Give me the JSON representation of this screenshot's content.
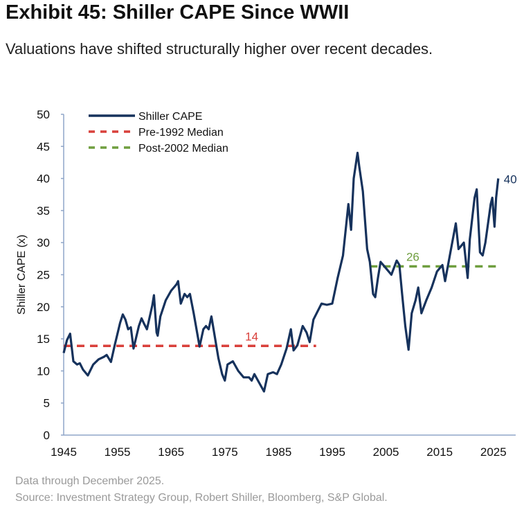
{
  "header": {
    "title": "Exhibit 45: Shiller CAPE Since WWII",
    "subtitle": "Valuations have shifted structurally higher over recent decades."
  },
  "footer": {
    "note": "Data through December 2025.",
    "source": "Source: Investment Strategy Group, Robert Shiller, Bloomberg, S&P Global."
  },
  "chart_data": {
    "type": "line",
    "title": "Exhibit 45: Shiller CAPE Since WWII",
    "xlabel": "",
    "ylabel": "Shiller CAPE (x)",
    "xlim": [
      1945,
      2029
    ],
    "ylim": [
      0,
      50
    ],
    "xticks": [
      1945,
      1955,
      1965,
      1975,
      1985,
      1995,
      2005,
      2015,
      2025
    ],
    "yticks": [
      0,
      5,
      10,
      15,
      20,
      25,
      30,
      35,
      40,
      45,
      50
    ],
    "legend": {
      "placement": "top-left",
      "entries": [
        "Shiller CAPE",
        "Pre-1992 Median",
        "Post-2002 Median"
      ]
    },
    "colors": {
      "cape": "#16325c",
      "pre": "#d9403b",
      "post": "#6f9e3f",
      "axis": "#8fa5c8"
    },
    "series": [
      {
        "name": "Shiller CAPE",
        "points": [
          [
            1945,
            12.8
          ],
          [
            1945.6,
            14.8
          ],
          [
            1946.2,
            15.8
          ],
          [
            1946.8,
            11.5
          ],
          [
            1947.5,
            11
          ],
          [
            1948,
            11.2
          ],
          [
            1948.6,
            10.2
          ],
          [
            1949.5,
            9.3
          ],
          [
            1950.5,
            11
          ],
          [
            1951.5,
            11.8
          ],
          [
            1952.5,
            12.2
          ],
          [
            1953,
            12.5
          ],
          [
            1953.8,
            11.4
          ],
          [
            1954.5,
            14
          ],
          [
            1955.5,
            17.5
          ],
          [
            1956,
            18.8
          ],
          [
            1956.5,
            18
          ],
          [
            1957,
            16.5
          ],
          [
            1957.5,
            16.8
          ],
          [
            1958,
            13.5
          ],
          [
            1959,
            17
          ],
          [
            1959.5,
            18.2
          ],
          [
            1960,
            17.3
          ],
          [
            1960.5,
            16.5
          ],
          [
            1961.5,
            20.2
          ],
          [
            1961.8,
            21.8
          ],
          [
            1962.3,
            16
          ],
          [
            1962.5,
            15.5
          ],
          [
            1963,
            18.5
          ],
          [
            1964,
            21
          ],
          [
            1965,
            22.5
          ],
          [
            1966,
            23.5
          ],
          [
            1966.3,
            24
          ],
          [
            1966.8,
            20.5
          ],
          [
            1967.5,
            22
          ],
          [
            1968,
            21.5
          ],
          [
            1968.5,
            22
          ],
          [
            1969.2,
            19
          ],
          [
            1970.3,
            13.8
          ],
          [
            1971,
            16.5
          ],
          [
            1971.5,
            17
          ],
          [
            1972,
            16.5
          ],
          [
            1972.5,
            18.5
          ],
          [
            1973,
            16
          ],
          [
            1973.8,
            12
          ],
          [
            1974.5,
            9.5
          ],
          [
            1975,
            8.5
          ],
          [
            1975.5,
            11
          ],
          [
            1976.5,
            11.5
          ],
          [
            1977.5,
            10
          ],
          [
            1978.5,
            9
          ],
          [
            1979.5,
            9
          ],
          [
            1980,
            8.5
          ],
          [
            1980.5,
            9.5
          ],
          [
            1981.5,
            8
          ],
          [
            1982.3,
            6.8
          ],
          [
            1983,
            9.5
          ],
          [
            1984,
            9.8
          ],
          [
            1984.7,
            9.5
          ],
          [
            1985.5,
            11
          ],
          [
            1986.5,
            13.5
          ],
          [
            1987.3,
            16.5
          ],
          [
            1987.8,
            13.2
          ],
          [
            1988.5,
            14
          ],
          [
            1989.5,
            17
          ],
          [
            1990.2,
            16
          ],
          [
            1990.8,
            14.5
          ],
          [
            1991.5,
            18
          ],
          [
            1993,
            20.5
          ],
          [
            1994,
            20.3
          ],
          [
            1995,
            20.5
          ],
          [
            1996,
            24.5
          ],
          [
            1997,
            28
          ],
          [
            1997.5,
            32
          ],
          [
            1998,
            36
          ],
          [
            1998.5,
            32
          ],
          [
            1999,
            40
          ],
          [
            1999.7,
            44
          ],
          [
            2000,
            42
          ],
          [
            2000.7,
            38
          ],
          [
            2001.5,
            29
          ],
          [
            2002,
            27
          ],
          [
            2002.6,
            22
          ],
          [
            2003,
            21.5
          ],
          [
            2003.5,
            24.5
          ],
          [
            2004,
            27
          ],
          [
            2005,
            26
          ],
          [
            2006,
            25
          ],
          [
            2007,
            27.2
          ],
          [
            2007.5,
            26.5
          ],
          [
            2008,
            22
          ],
          [
            2008.6,
            17
          ],
          [
            2009.2,
            13.3
          ],
          [
            2009.8,
            19
          ],
          [
            2010.5,
            21
          ],
          [
            2011,
            23
          ],
          [
            2011.6,
            19
          ],
          [
            2012.5,
            21
          ],
          [
            2013.5,
            23
          ],
          [
            2014.5,
            25.5
          ],
          [
            2015.5,
            26.5
          ],
          [
            2016,
            24
          ],
          [
            2017,
            28.5
          ],
          [
            2018,
            33
          ],
          [
            2018.5,
            29
          ],
          [
            2019.5,
            30
          ],
          [
            2020.2,
            24.5
          ],
          [
            2020.6,
            30.5
          ],
          [
            2021.5,
            37
          ],
          [
            2021.9,
            38.3
          ],
          [
            2022.5,
            28.5
          ],
          [
            2023,
            28
          ],
          [
            2023.5,
            30
          ],
          [
            2024.5,
            36
          ],
          [
            2024.8,
            37
          ],
          [
            2025.2,
            32.5
          ],
          [
            2025.5,
            37
          ],
          [
            2025.9,
            40
          ]
        ]
      }
    ],
    "medians": [
      {
        "name": "Pre-1992 Median",
        "value": 13.9,
        "from": 1945,
        "to": 1992,
        "label": "14",
        "label_year": 1980
      },
      {
        "name": "Post-2002 Median",
        "value": 26.3,
        "from": 2002,
        "to": 2025.9,
        "label": "26",
        "label_year": 2010
      }
    ],
    "end_label": {
      "text": "40",
      "value": 40
    }
  }
}
